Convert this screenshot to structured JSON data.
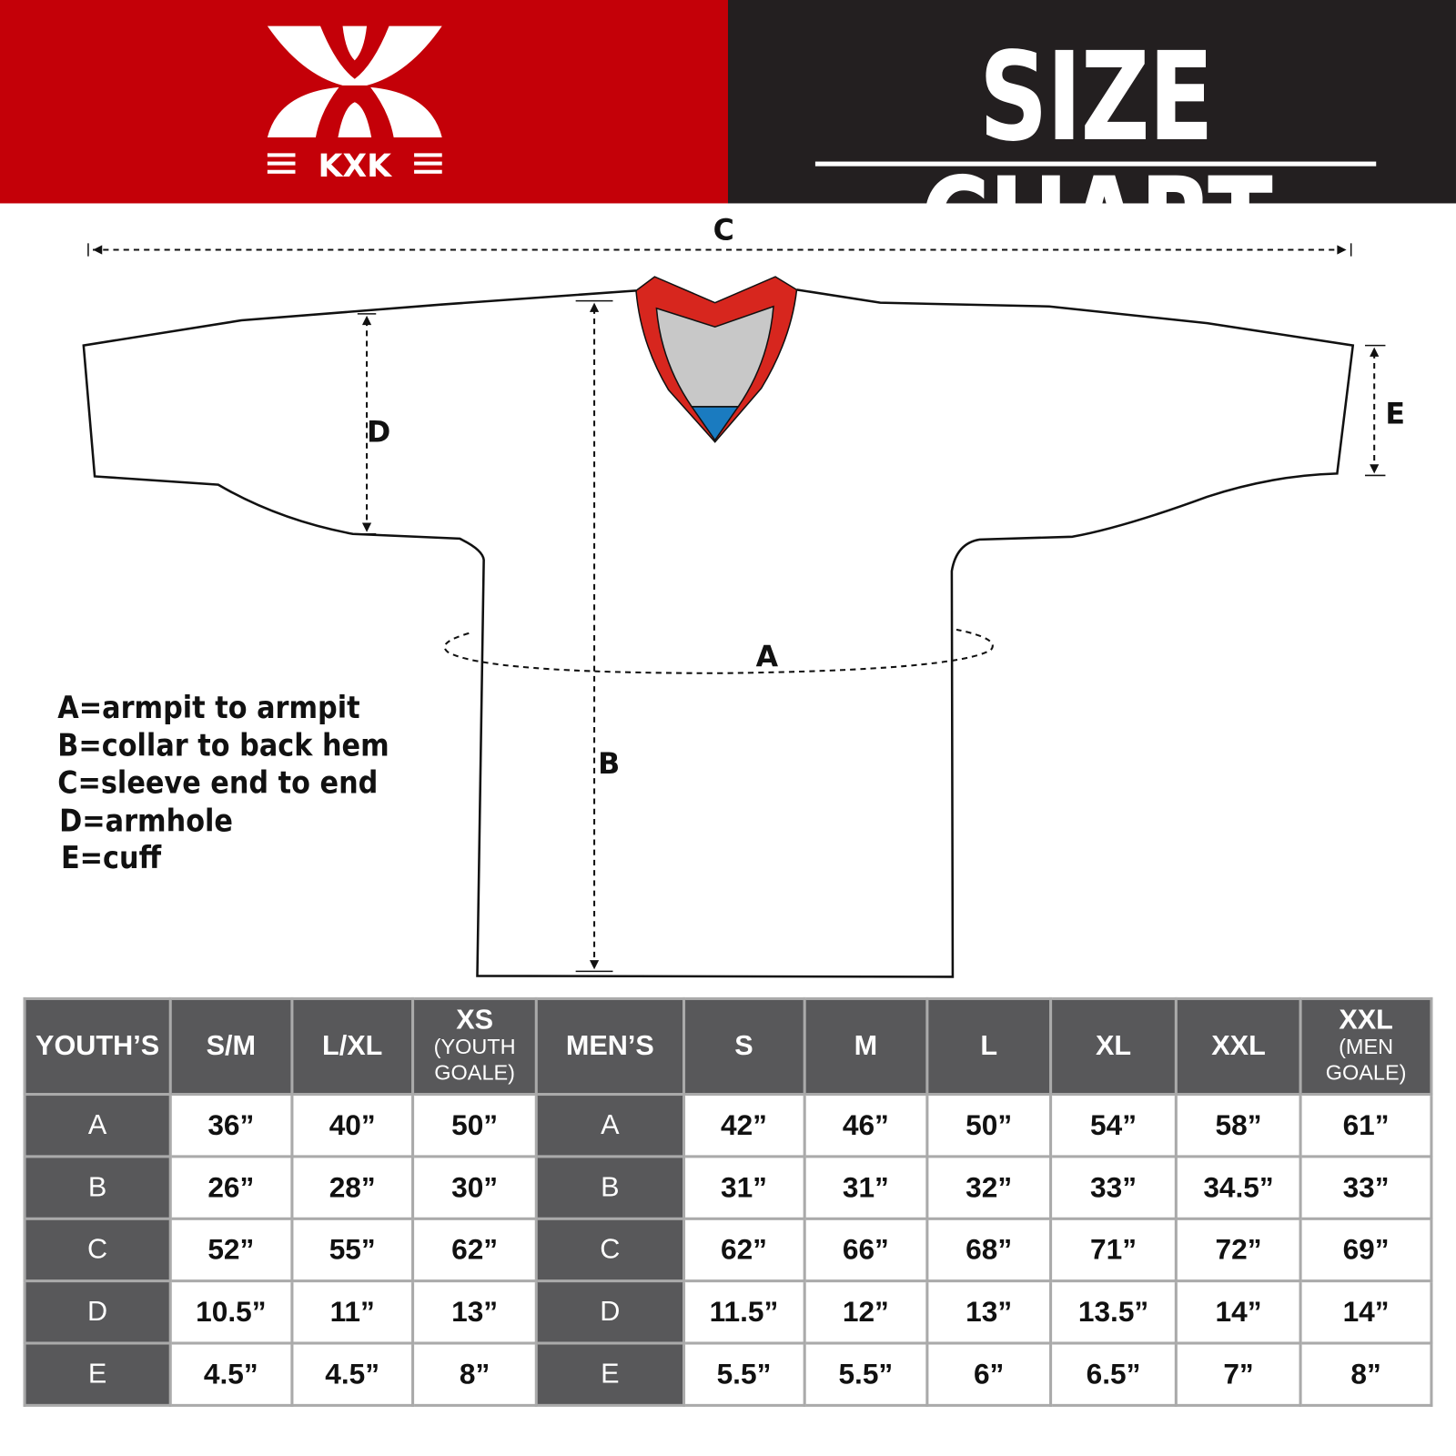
{
  "brand": {
    "logo_text": "KXK",
    "colors": {
      "red": "#c40008",
      "dark": "#231f20",
      "table_header": "#58585a"
    }
  },
  "header": {
    "title": "SIZE CHART"
  },
  "diagram": {
    "labels": {
      "a": "A",
      "b": "B",
      "c": "C",
      "d": "D",
      "e": "E"
    }
  },
  "legend": [
    "A=armpit to armpit",
    "B=collar to back hem",
    "C=sleeve end to end",
    "D=armhole",
    "E=cuff"
  ],
  "table": {
    "youth": {
      "header": "YOUTH’S",
      "sizes": [
        {
          "main": "S/M",
          "sub": ""
        },
        {
          "main": "L/XL",
          "sub": ""
        },
        {
          "main": "XS",
          "sub": "(YOUTH GOALE)"
        }
      ],
      "rows": [
        {
          "label": "A",
          "values": [
            "36”",
            "40”",
            "50”"
          ]
        },
        {
          "label": "B",
          "values": [
            "26”",
            "28”",
            "30”"
          ]
        },
        {
          "label": "C",
          "values": [
            "52”",
            "55”",
            "62”"
          ]
        },
        {
          "label": "D",
          "values": [
            "10.5”",
            "11”",
            "13”"
          ]
        },
        {
          "label": "E",
          "values": [
            "4.5”",
            "4.5”",
            "8”"
          ]
        }
      ]
    },
    "men": {
      "header": "MEN’S",
      "sizes": [
        {
          "main": "S",
          "sub": ""
        },
        {
          "main": "M",
          "sub": ""
        },
        {
          "main": "L",
          "sub": ""
        },
        {
          "main": "XL",
          "sub": ""
        },
        {
          "main": "XXL",
          "sub": ""
        },
        {
          "main": "XXL",
          "sub": "(MEN GOALE)"
        }
      ],
      "rows": [
        {
          "label": "A",
          "values": [
            "42”",
            "46”",
            "50”",
            "54”",
            "58”",
            "61”"
          ]
        },
        {
          "label": "B",
          "values": [
            "31”",
            "31”",
            "32”",
            "33”",
            "34.5”",
            "33”"
          ]
        },
        {
          "label": "C",
          "values": [
            "62”",
            "66”",
            "68”",
            "71”",
            "72”",
            "69”"
          ]
        },
        {
          "label": "D",
          "values": [
            "11.5”",
            "12”",
            "13”",
            "13.5”",
            "14”",
            "14”"
          ]
        },
        {
          "label": "E",
          "values": [
            "5.5”",
            "5.5”",
            "6”",
            "6.5”",
            "7”",
            "8”"
          ]
        }
      ]
    }
  }
}
